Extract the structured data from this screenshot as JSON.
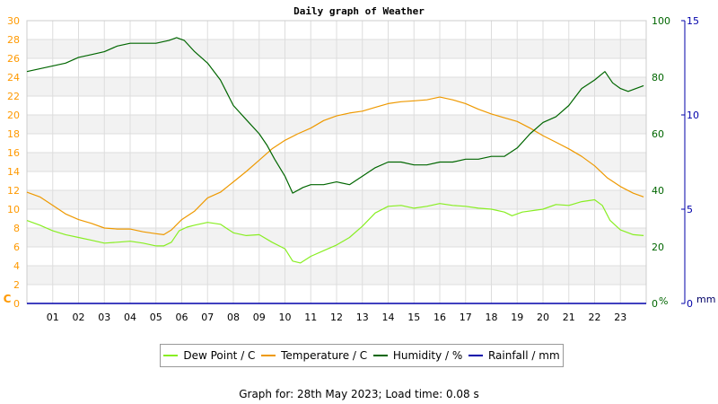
{
  "chart_data": {
    "type": "line",
    "title": "Daily graph of Weather",
    "x_ticks": [
      "01",
      "02",
      "03",
      "04",
      "05",
      "06",
      "07",
      "08",
      "09",
      "10",
      "11",
      "12",
      "13",
      "14",
      "15",
      "16",
      "17",
      "18",
      "19",
      "20",
      "21",
      "22",
      "23"
    ],
    "x_unit": "hour",
    "xlim": [
      0,
      24
    ],
    "axes": {
      "left": {
        "label": "C",
        "ylim": [
          0,
          30
        ],
        "ticks": [
          0,
          2,
          4,
          6,
          8,
          10,
          12,
          14,
          16,
          18,
          20,
          22,
          24,
          26,
          28,
          30
        ],
        "color": "#ff9900"
      },
      "right_humidity": {
        "label": "%",
        "ylim": [
          0,
          100
        ],
        "ticks": [
          0,
          20,
          40,
          60,
          80,
          100
        ],
        "color": "#006600"
      },
      "right_rain": {
        "label": "mm",
        "ylim": [
          0,
          15
        ],
        "ticks": [
          0,
          5,
          10,
          15
        ],
        "color": "#0000aa"
      }
    },
    "grid": true,
    "legend_position": "bottom",
    "series": [
      {
        "name": "Dew Point / C",
        "axis": "left",
        "color": "#88ee22",
        "points": [
          [
            0,
            8.8
          ],
          [
            0.5,
            8.3
          ],
          [
            1,
            7.7
          ],
          [
            1.5,
            7.3
          ],
          [
            2,
            7.0
          ],
          [
            2.5,
            6.7
          ],
          [
            3,
            6.4
          ],
          [
            3.5,
            6.5
          ],
          [
            4,
            6.6
          ],
          [
            4.5,
            6.4
          ],
          [
            5,
            6.1
          ],
          [
            5.3,
            6.1
          ],
          [
            5.6,
            6.5
          ],
          [
            5.9,
            7.7
          ],
          [
            6.2,
            8.1
          ],
          [
            6.5,
            8.3
          ],
          [
            7,
            8.6
          ],
          [
            7.5,
            8.4
          ],
          [
            8,
            7.5
          ],
          [
            8.5,
            7.2
          ],
          [
            9,
            7.3
          ],
          [
            9.5,
            6.5
          ],
          [
            10,
            5.8
          ],
          [
            10.3,
            4.5
          ],
          [
            10.6,
            4.3
          ],
          [
            11,
            5.0
          ],
          [
            11.5,
            5.6
          ],
          [
            12,
            6.2
          ],
          [
            12.5,
            7.0
          ],
          [
            13,
            8.2
          ],
          [
            13.5,
            9.6
          ],
          [
            14,
            10.3
          ],
          [
            14.5,
            10.4
          ],
          [
            15,
            10.1
          ],
          [
            15.5,
            10.3
          ],
          [
            16,
            10.6
          ],
          [
            16.5,
            10.4
          ],
          [
            17,
            10.3
          ],
          [
            17.5,
            10.1
          ],
          [
            18,
            10.0
          ],
          [
            18.5,
            9.7
          ],
          [
            18.8,
            9.3
          ],
          [
            19.2,
            9.7
          ],
          [
            20,
            10.0
          ],
          [
            20.5,
            10.5
          ],
          [
            21,
            10.4
          ],
          [
            21.5,
            10.8
          ],
          [
            22,
            11.0
          ],
          [
            22.3,
            10.4
          ],
          [
            22.6,
            8.8
          ],
          [
            23,
            7.8
          ],
          [
            23.5,
            7.3
          ],
          [
            23.9,
            7.2
          ]
        ]
      },
      {
        "name": "Temperature / C",
        "axis": "left",
        "color": "#ee9900",
        "points": [
          [
            0,
            11.8
          ],
          [
            0.5,
            11.3
          ],
          [
            1,
            10.4
          ],
          [
            1.5,
            9.5
          ],
          [
            2,
            8.9
          ],
          [
            2.5,
            8.5
          ],
          [
            3,
            8.0
          ],
          [
            3.5,
            7.9
          ],
          [
            4,
            7.9
          ],
          [
            4.5,
            7.6
          ],
          [
            5,
            7.4
          ],
          [
            5.3,
            7.3
          ],
          [
            5.6,
            7.8
          ],
          [
            6,
            8.9
          ],
          [
            6.5,
            9.8
          ],
          [
            7,
            11.2
          ],
          [
            7.5,
            11.8
          ],
          [
            8,
            12.9
          ],
          [
            8.5,
            14.0
          ],
          [
            9,
            15.2
          ],
          [
            9.5,
            16.4
          ],
          [
            10,
            17.3
          ],
          [
            10.5,
            18.0
          ],
          [
            11,
            18.6
          ],
          [
            11.5,
            19.4
          ],
          [
            12,
            19.9
          ],
          [
            12.5,
            20.2
          ],
          [
            13,
            20.4
          ],
          [
            13.5,
            20.8
          ],
          [
            14,
            21.2
          ],
          [
            14.5,
            21.4
          ],
          [
            15,
            21.5
          ],
          [
            15.5,
            21.6
          ],
          [
            16,
            21.9
          ],
          [
            16.5,
            21.6
          ],
          [
            17,
            21.2
          ],
          [
            17.5,
            20.6
          ],
          [
            18,
            20.1
          ],
          [
            18.5,
            19.7
          ],
          [
            19,
            19.3
          ],
          [
            19.5,
            18.6
          ],
          [
            20,
            17.8
          ],
          [
            20.5,
            17.1
          ],
          [
            21,
            16.4
          ],
          [
            21.5,
            15.6
          ],
          [
            22,
            14.6
          ],
          [
            22.5,
            13.3
          ],
          [
            23,
            12.4
          ],
          [
            23.5,
            11.7
          ],
          [
            23.9,
            11.3
          ]
        ]
      },
      {
        "name": "Humidity / %",
        "axis": "right_humidity",
        "color": "#006600",
        "points": [
          [
            0,
            82
          ],
          [
            0.5,
            83
          ],
          [
            1,
            84
          ],
          [
            1.5,
            85
          ],
          [
            2,
            87
          ],
          [
            2.5,
            88
          ],
          [
            3,
            89
          ],
          [
            3.5,
            91
          ],
          [
            4,
            92
          ],
          [
            4.5,
            92
          ],
          [
            5,
            92
          ],
          [
            5.5,
            93
          ],
          [
            5.8,
            94
          ],
          [
            6.1,
            93
          ],
          [
            6.5,
            89
          ],
          [
            7,
            85
          ],
          [
            7.5,
            79
          ],
          [
            8,
            70
          ],
          [
            8.5,
            65
          ],
          [
            9,
            60
          ],
          [
            9.3,
            56
          ],
          [
            9.6,
            51
          ],
          [
            10,
            45
          ],
          [
            10.3,
            39
          ],
          [
            10.7,
            41
          ],
          [
            11,
            42
          ],
          [
            11.5,
            42
          ],
          [
            12,
            43
          ],
          [
            12.5,
            42
          ],
          [
            13,
            45
          ],
          [
            13.5,
            48
          ],
          [
            14,
            50
          ],
          [
            14.5,
            50
          ],
          [
            15,
            49
          ],
          [
            15.5,
            49
          ],
          [
            16,
            50
          ],
          [
            16.5,
            50
          ],
          [
            17,
            51
          ],
          [
            17.5,
            51
          ],
          [
            18,
            52
          ],
          [
            18.5,
            52
          ],
          [
            19,
            55
          ],
          [
            19.5,
            60
          ],
          [
            20,
            64
          ],
          [
            20.5,
            66
          ],
          [
            21,
            70
          ],
          [
            21.5,
            76
          ],
          [
            22,
            79
          ],
          [
            22.4,
            82
          ],
          [
            22.7,
            78
          ],
          [
            23,
            76
          ],
          [
            23.3,
            75
          ],
          [
            23.9,
            77
          ]
        ]
      },
      {
        "name": "Rainfall / mm",
        "axis": "right_rain",
        "color": "#0000aa",
        "points": [
          [
            0,
            0
          ],
          [
            24,
            0
          ]
        ]
      }
    ]
  },
  "footer": {
    "text": "Graph for: 28th May 2023; Load time: 0.08 s"
  }
}
